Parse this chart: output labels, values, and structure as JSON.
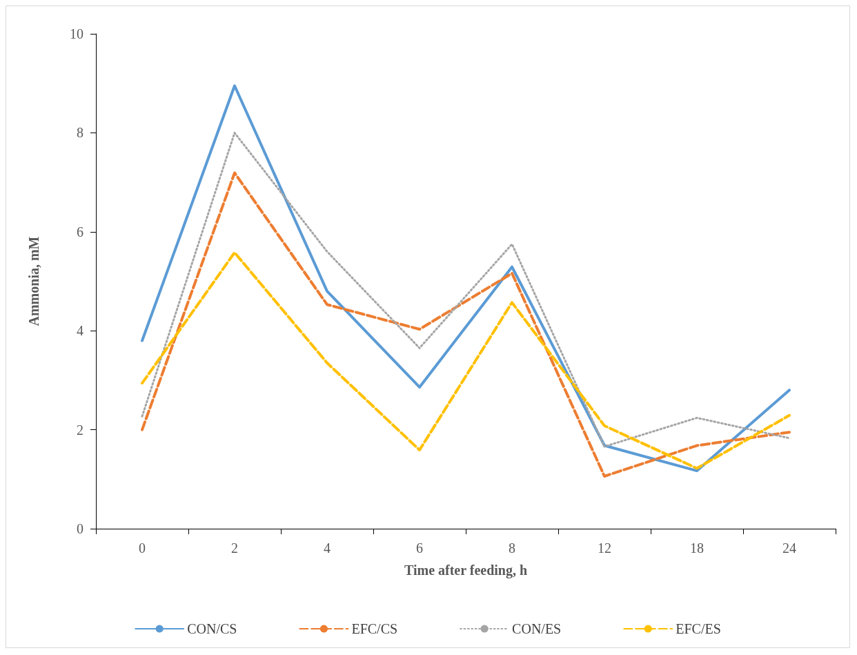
{
  "chart_data": {
    "type": "line",
    "xlabel": "Time after feeding, h",
    "ylabel": "Ammonia, mM",
    "categories": [
      "0",
      "2",
      "4",
      "6",
      "8",
      "12",
      "18",
      "24"
    ],
    "ylim": [
      0,
      10
    ],
    "yticks": [
      0,
      2,
      4,
      6,
      8,
      10
    ],
    "grid": false,
    "legend": "bottom",
    "marker": "none",
    "series": [
      {
        "name": "CON/CS",
        "color": "#5b9bd5",
        "line_style": "solid",
        "values": [
          3.8,
          8.95,
          4.8,
          2.86,
          5.29,
          1.68,
          1.17,
          2.8
        ]
      },
      {
        "name": "EFC/CS",
        "color": "#ed7d31",
        "line_style": "dashed",
        "values": [
          2.0,
          7.19,
          4.53,
          4.03,
          5.16,
          1.06,
          1.68,
          1.95
        ]
      },
      {
        "name": "CON/ES",
        "color": "#a5a5a5",
        "line_style": "dotted",
        "values": [
          2.27,
          8.0,
          5.6,
          3.65,
          5.75,
          1.66,
          2.24,
          1.83
        ]
      },
      {
        "name": "EFC/ES",
        "color": "#ffc000",
        "line_style": "dashed",
        "values": [
          2.94,
          5.58,
          3.35,
          1.59,
          4.57,
          2.08,
          1.22,
          2.29
        ]
      }
    ]
  }
}
